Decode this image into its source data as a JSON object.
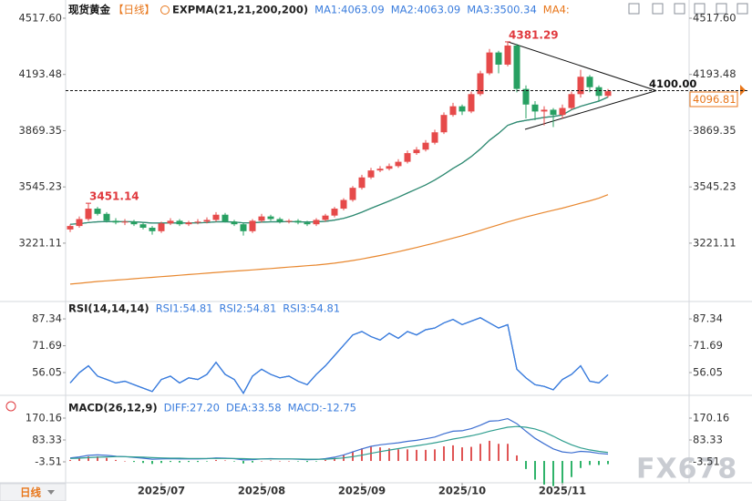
{
  "header": {
    "symbol": "现货黄金",
    "period": "【日线】",
    "period_button": "日线",
    "watermark": "FX678"
  },
  "chart_data": [
    {
      "type": "candlestick",
      "indicator": "EXPMA(21,21,200,200)",
      "ma4_label": "MA4:",
      "categories": [
        null,
        null,
        null,
        null,
        null,
        null,
        null,
        null,
        null,
        null,
        "2025/07",
        null,
        null,
        null,
        null,
        null,
        null,
        null,
        null,
        null,
        null,
        "2025/08",
        null,
        null,
        null,
        null,
        null,
        null,
        null,
        null,
        null,
        null,
        "2025/09",
        null,
        null,
        null,
        null,
        null,
        null,
        null,
        null,
        null,
        null,
        "2025/10",
        null,
        null,
        null,
        null,
        null,
        null,
        null,
        null,
        null,
        null,
        "2025/11",
        null,
        null,
        null,
        null,
        null
      ],
      "open": [
        3300,
        3320,
        3360,
        3420,
        3390,
        3350,
        3340,
        3345,
        3330,
        3310,
        3290,
        3335,
        3350,
        3330,
        3340,
        3345,
        3355,
        3385,
        3345,
        3330,
        3290,
        3350,
        3375,
        3360,
        3345,
        3350,
        3340,
        3330,
        3355,
        3380,
        3420,
        3470,
        3540,
        3600,
        3640,
        3650,
        3665,
        3690,
        3740,
        3760,
        3800,
        3860,
        3960,
        4010,
        3980,
        4080,
        4200,
        4320,
        4250,
        4360,
        4110,
        4020,
        3980,
        3990,
        3960,
        4000,
        4080,
        4180,
        4120,
        4070
      ],
      "high": [
        3330,
        3375,
        3451.14,
        3430,
        3400,
        3365,
        3360,
        3355,
        3340,
        3320,
        3345,
        3365,
        3360,
        3350,
        3360,
        3370,
        3400,
        3395,
        3355,
        3340,
        3360,
        3390,
        3385,
        3370,
        3360,
        3360,
        3350,
        3365,
        3390,
        3430,
        3480,
        3550,
        3615,
        3655,
        3665,
        3680,
        3705,
        3755,
        3775,
        3815,
        3875,
        3975,
        4030,
        4020,
        4095,
        4215,
        4340,
        4330,
        4381.29,
        4370,
        4130,
        4040,
        4010,
        4000,
        4020,
        4095,
        4220,
        4190,
        4130,
        4110
      ],
      "low": [
        3285,
        3310,
        3350,
        3380,
        3340,
        3330,
        3325,
        3320,
        3300,
        3270,
        3280,
        3325,
        3320,
        3320,
        3330,
        3335,
        3345,
        3340,
        3320,
        3265,
        3280,
        3340,
        3350,
        3335,
        3335,
        3330,
        3320,
        3320,
        3345,
        3370,
        3410,
        3460,
        3530,
        3590,
        3630,
        3640,
        3655,
        3680,
        3730,
        3750,
        3790,
        3850,
        3950,
        3960,
        3970,
        4070,
        4190,
        4200,
        4240,
        4090,
        3940,
        3930,
        3900,
        3890,
        3940,
        3990,
        4060,
        4090,
        4040,
        4060
      ],
      "close": [
        3320,
        3360,
        3420,
        3390,
        3350,
        3340,
        3345,
        3330,
        3310,
        3290,
        3335,
        3350,
        3330,
        3340,
        3345,
        3355,
        3385,
        3345,
        3330,
        3290,
        3350,
        3375,
        3360,
        3345,
        3350,
        3340,
        3330,
        3355,
        3380,
        3420,
        3470,
        3540,
        3600,
        3640,
        3650,
        3665,
        3690,
        3740,
        3760,
        3800,
        3860,
        3960,
        4010,
        3980,
        4080,
        4200,
        4320,
        4250,
        4360,
        4110,
        4020,
        3980,
        3990,
        3960,
        4000,
        4080,
        4180,
        4120,
        4070,
        4096.81
      ],
      "up_color": "#e64a4a",
      "down_color": "#27a062",
      "series": [
        {
          "name": "MA1:4063.09",
          "color": "#2f8a72",
          "values": [
            3330,
            3333,
            3340,
            3344,
            3345,
            3345,
            3345,
            3344,
            3341,
            3337,
            3337,
            3338,
            3337,
            3338,
            3338,
            3340,
            3344,
            3344,
            3343,
            3338,
            3339,
            3342,
            3344,
            3344,
            3345,
            3344,
            3343,
            3344,
            3347,
            3354,
            3364,
            3380,
            3400,
            3422,
            3443,
            3464,
            3486,
            3510,
            3533,
            3557,
            3585,
            3617,
            3652,
            3683,
            3720,
            3764,
            3814,
            3854,
            3900,
            3919,
            3929,
            3937,
            3946,
            3951,
            3960,
            3990,
            4010,
            4025,
            4040,
            4063.09
          ]
        },
        {
          "name": "MA2:4063.09",
          "color": "#2f8a72",
          "values": [
            3330,
            3333,
            3340,
            3344,
            3345,
            3345,
            3345,
            3344,
            3341,
            3337,
            3337,
            3338,
            3337,
            3338,
            3338,
            3340,
            3344,
            3344,
            3343,
            3338,
            3339,
            3342,
            3344,
            3344,
            3345,
            3344,
            3343,
            3344,
            3347,
            3354,
            3364,
            3380,
            3400,
            3422,
            3443,
            3464,
            3486,
            3510,
            3533,
            3557,
            3585,
            3617,
            3652,
            3683,
            3720,
            3764,
            3814,
            3854,
            3900,
            3919,
            3929,
            3937,
            3946,
            3951,
            3960,
            3990,
            4010,
            4025,
            4040,
            4063.09
          ]
        },
        {
          "name": "MA3:3500.34",
          "color": "#e8872e",
          "values": [
            2985,
            2990,
            2995,
            3000,
            3004,
            3008,
            3012,
            3016,
            3020,
            3024,
            3028,
            3032,
            3036,
            3040,
            3044,
            3048,
            3052,
            3056,
            3060,
            3063,
            3067,
            3071,
            3075,
            3079,
            3083,
            3087,
            3091,
            3095,
            3100,
            3106,
            3113,
            3121,
            3130,
            3140,
            3150,
            3161,
            3172,
            3184,
            3196,
            3209,
            3222,
            3236,
            3250,
            3264,
            3279,
            3295,
            3311,
            3327,
            3343,
            3358,
            3372,
            3385,
            3398,
            3411,
            3423,
            3437,
            3451,
            3465,
            3480,
            3500.34
          ]
        }
      ],
      "hline": {
        "value": 4100,
        "label": "4100.00"
      },
      "ylim": [
        2890,
        4570
      ],
      "yticks": [
        {
          "value": 4517.6,
          "label": "4517.60"
        },
        4193.48,
        3869.35,
        3545.23,
        3221.11
      ]
    },
    {
      "type": "line",
      "indicator": "RSI(14,14,14)",
      "series": [
        {
          "name": "RSI1:54.81",
          "color": "#3b7ddd",
          "values": [
            50,
            56,
            60,
            54,
            52,
            50,
            51,
            49,
            47,
            45,
            52,
            54,
            50,
            53,
            52,
            55,
            62,
            55,
            52,
            44,
            54,
            58,
            55,
            53,
            54,
            51,
            49,
            55,
            60,
            66,
            72,
            78,
            80,
            77,
            75,
            79,
            76,
            80,
            78,
            81,
            82,
            85,
            87,
            84,
            86,
            88,
            85,
            82,
            84,
            58,
            53,
            49,
            48,
            46,
            52,
            55,
            60,
            51,
            50,
            54.81
          ]
        },
        {
          "name": "RSI2:54.81",
          "color": "#3b7ddd",
          "values": [
            50,
            56,
            60,
            54,
            52,
            50,
            51,
            49,
            47,
            45,
            52,
            54,
            50,
            53,
            52,
            55,
            62,
            55,
            52,
            44,
            54,
            58,
            55,
            53,
            54,
            51,
            49,
            55,
            60,
            66,
            72,
            78,
            80,
            77,
            75,
            79,
            76,
            80,
            78,
            81,
            82,
            85,
            87,
            84,
            86,
            88,
            85,
            82,
            84,
            58,
            53,
            49,
            48,
            46,
            52,
            55,
            60,
            51,
            50,
            54.81
          ]
        },
        {
          "name": "RSI3:54.81",
          "color": "#3b7ddd",
          "values": [
            50,
            56,
            60,
            54,
            52,
            50,
            51,
            49,
            47,
            45,
            52,
            54,
            50,
            53,
            52,
            55,
            62,
            55,
            52,
            44,
            54,
            58,
            55,
            53,
            54,
            51,
            49,
            55,
            60,
            66,
            72,
            78,
            80,
            77,
            75,
            79,
            76,
            80,
            78,
            81,
            82,
            85,
            87,
            84,
            86,
            88,
            85,
            82,
            84,
            58,
            53,
            49,
            48,
            46,
            52,
            55,
            60,
            51,
            50,
            54.81
          ]
        }
      ],
      "ylim": [
        43.85,
        96.4
      ],
      "yticks": [
        87.34,
        71.69,
        56.05
      ]
    },
    {
      "type": "macd",
      "indicator": "MACD(26,12,9)",
      "series": [
        {
          "name": "DIFF:27.20",
          "color": "#3d6fd1",
          "values": [
            12,
            16,
            22,
            24,
            22,
            19,
            17,
            14,
            11,
            7,
            8,
            9,
            8,
            8,
            8,
            9,
            12,
            11,
            9,
            4,
            5,
            8,
            9,
            8,
            8,
            7,
            5,
            6,
            9,
            15,
            24,
            36,
            48,
            58,
            64,
            68,
            72,
            78,
            82,
            88,
            95,
            108,
            118,
            120,
            128,
            142,
            158,
            160,
            168,
            148,
            118,
            90,
            68,
            48,
            36,
            32,
            38,
            36,
            30,
            27.2
          ]
        },
        {
          "name": "DEA:33.58",
          "color": "#2f9e8f",
          "values": [
            10,
            11,
            13,
            15,
            16,
            17,
            17,
            16,
            15,
            13,
            12,
            11,
            11,
            10,
            10,
            10,
            10,
            10,
            10,
            9,
            8,
            8,
            8,
            8,
            8,
            8,
            7,
            7,
            7,
            9,
            12,
            17,
            23,
            30,
            37,
            43,
            49,
            55,
            60,
            66,
            72,
            79,
            87,
            93,
            100,
            108,
            118,
            126,
            134,
            137,
            134,
            127,
            115,
            98,
            80,
            64,
            52,
            44,
            38,
            33.58
          ]
        }
      ],
      "histogram": {
        "name": "MACD:-12.75",
        "up_color": "#e05555",
        "down_color": "#2fb36a",
        "values": [
          4,
          10,
          18,
          18,
          12,
          4,
          0,
          -4,
          -8,
          -12,
          -8,
          -4,
          -6,
          -4,
          -4,
          -2,
          4,
          2,
          -2,
          -10,
          -6,
          0,
          2,
          0,
          0,
          -2,
          -4,
          -2,
          4,
          12,
          24,
          38,
          50,
          56,
          54,
          50,
          46,
          46,
          44,
          44,
          46,
          58,
          62,
          54,
          56,
          68,
          80,
          68,
          68,
          22,
          -32,
          -74,
          -94,
          -100,
          -88,
          -64,
          -28,
          -16,
          -16,
          -12.75
        ]
      },
      "ylim": [
        -86.7,
        249.7
      ],
      "yticks": [
        170.16,
        83.33,
        -3.51
      ]
    }
  ]
}
